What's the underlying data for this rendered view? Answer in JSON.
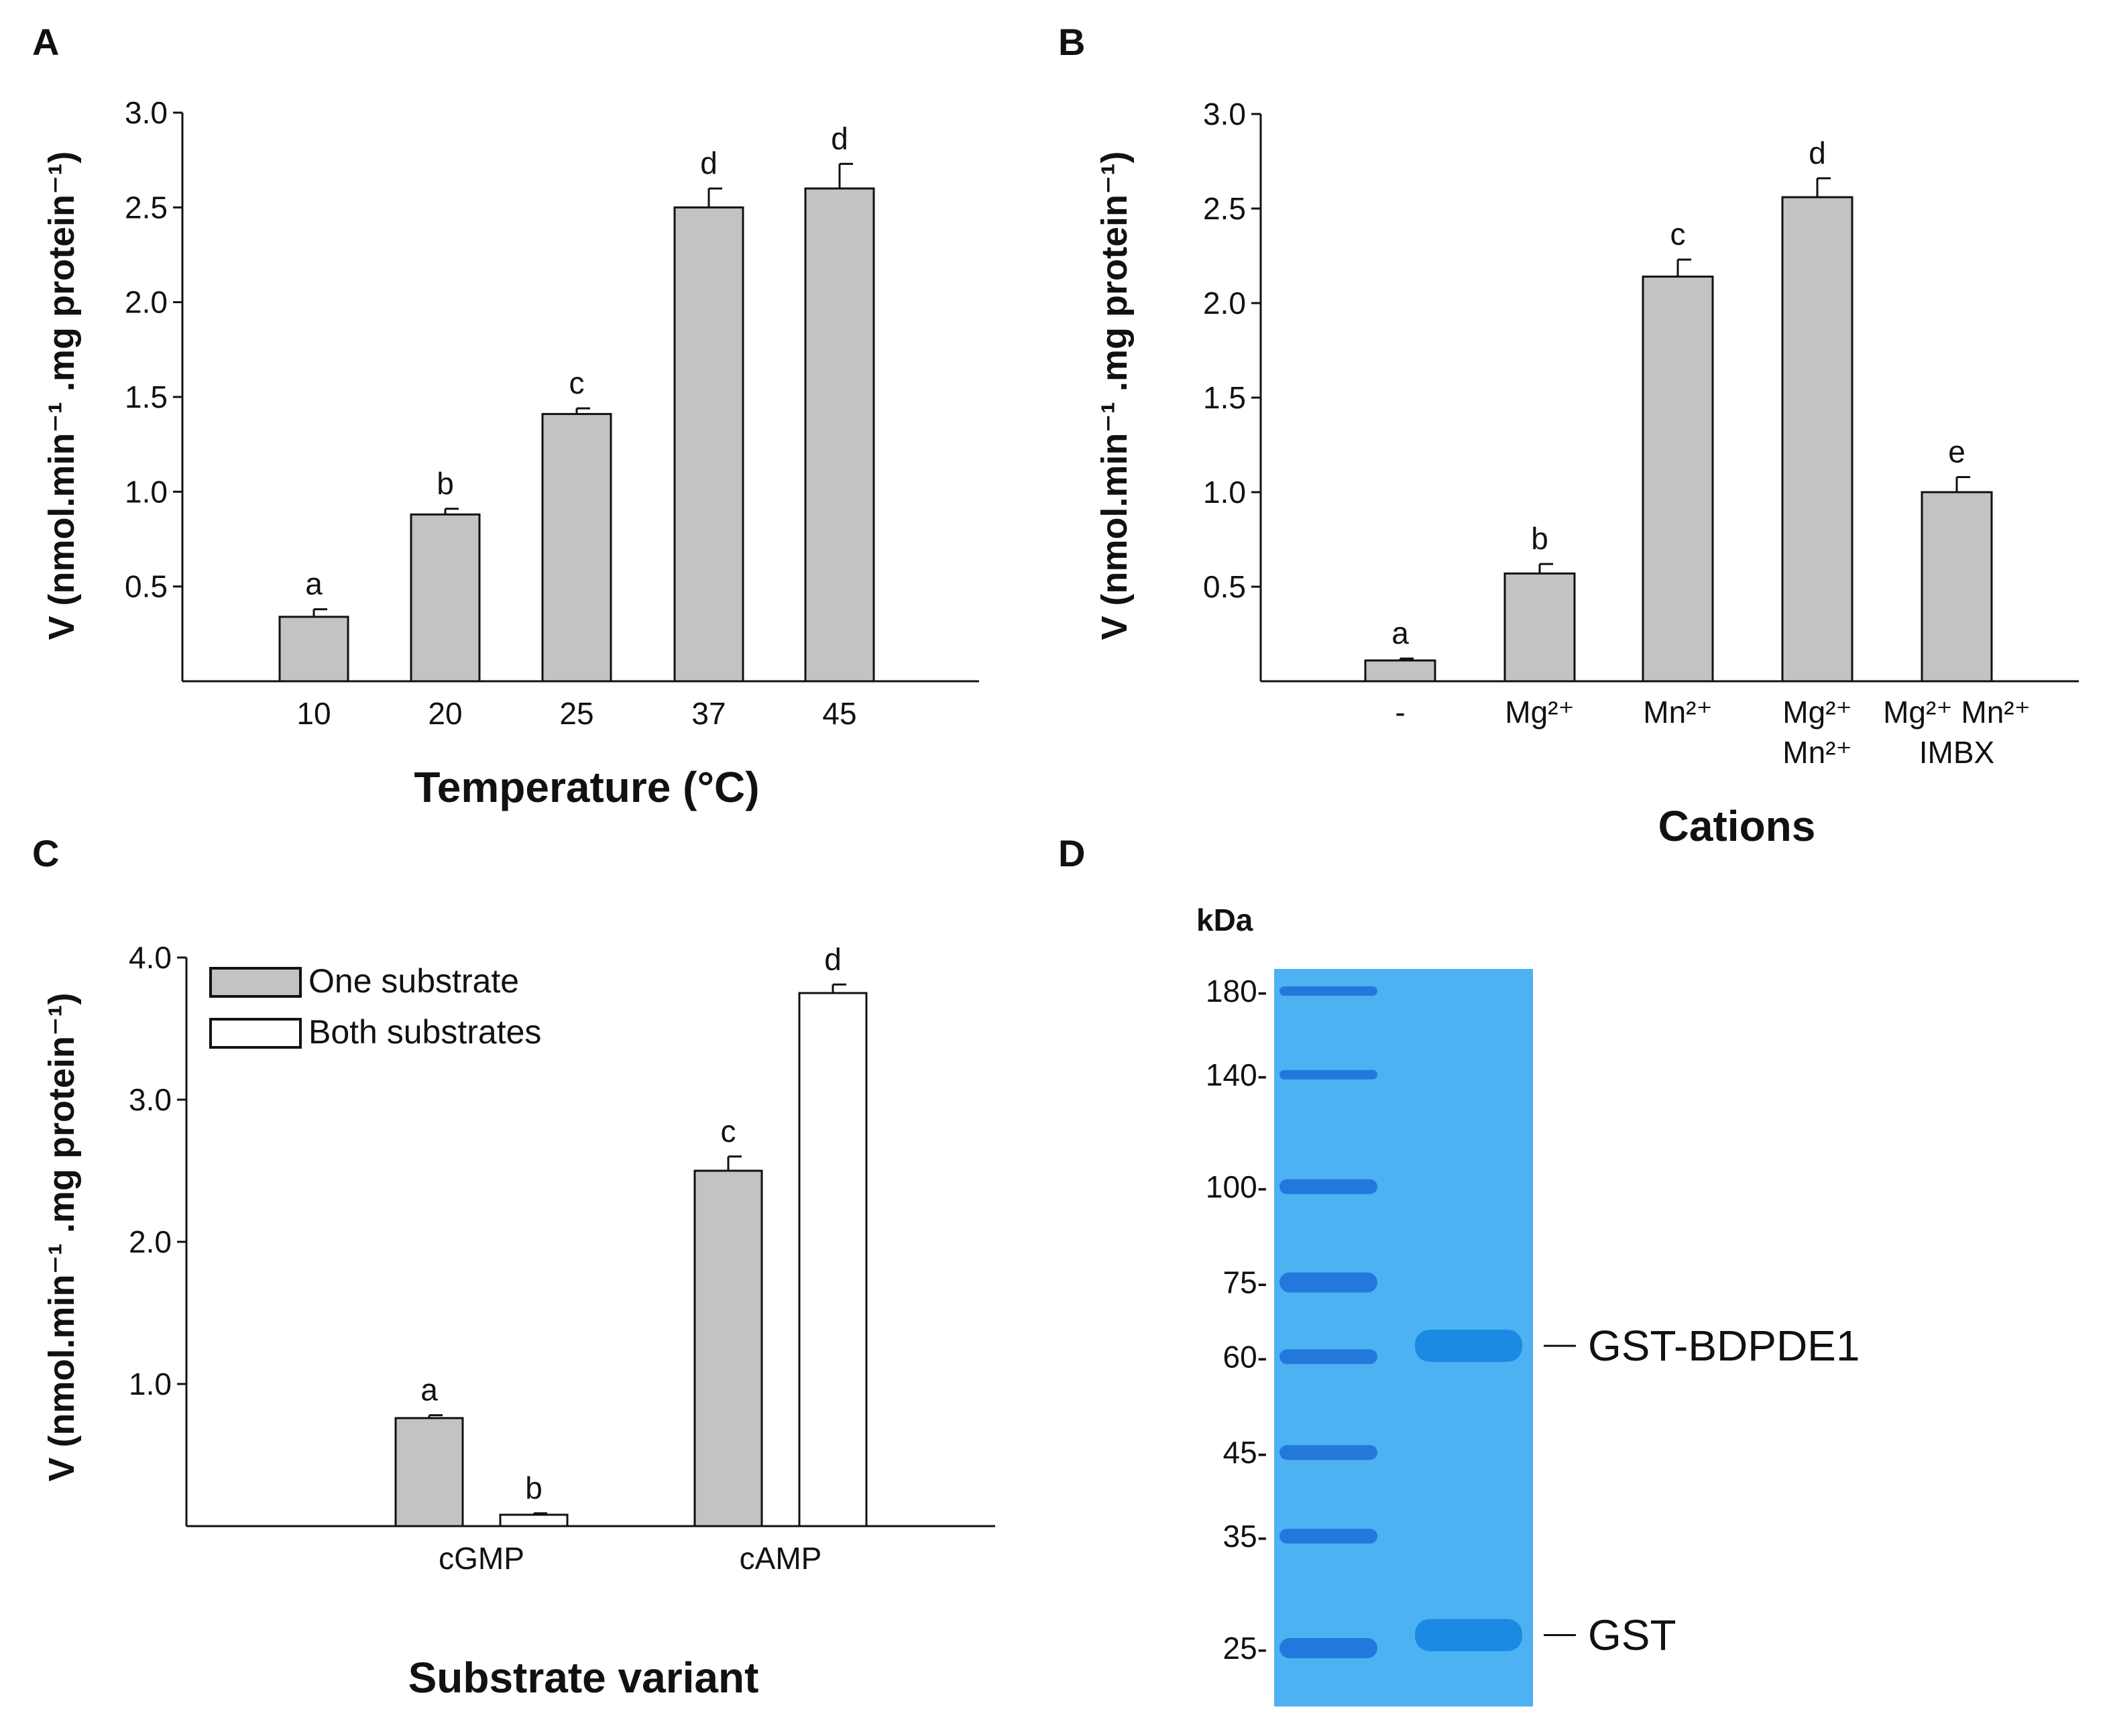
{
  "colors": {
    "bar_gray": "#c3c3c3",
    "bar_white": "#ffffff",
    "gel_blue": "#4cb2f1",
    "ladder_band": "#1f72d8",
    "protein_band": "#1a8ae3"
  },
  "chart_data": [
    {
      "panel": "A",
      "type": "bar",
      "title": "",
      "xlabel": "Temperature (°C)",
      "ylabel": "V (nmol.min⁻¹ .mg protein⁻¹)",
      "ylim": [
        0,
        3.0
      ],
      "yticks": [
        "0.5",
        "1.0",
        "1.5",
        "2.0",
        "2.5",
        "3.0"
      ],
      "categories": [
        "10",
        "20",
        "25",
        "37",
        "45"
      ],
      "values": [
        0.34,
        0.88,
        1.41,
        2.5,
        2.6
      ],
      "errors": [
        0.04,
        0.03,
        0.03,
        0.1,
        0.13
      ],
      "letters": [
        "a",
        "b",
        "c",
        "d",
        "d"
      ],
      "grid": false
    },
    {
      "panel": "B",
      "type": "bar",
      "title": "",
      "xlabel": "Cations",
      "ylabel": "V (nmol.min⁻¹ .mg protein⁻¹)",
      "ylim": [
        0,
        3.0
      ],
      "yticks": [
        "0.5",
        "1.0",
        "1.5",
        "2.0",
        "2.5",
        "3.0"
      ],
      "categories": [
        {
          "line1": "-",
          "line2": ""
        },
        {
          "line1": "Mg²⁺",
          "line2": ""
        },
        {
          "line1": "Mn²⁺",
          "line2": ""
        },
        {
          "line1": "Mg²⁺",
          "line2": "Mn²⁺"
        },
        {
          "line1": "Mg²⁺ Mn²⁺",
          "line2": "IMBX"
        }
      ],
      "values": [
        0.11,
        0.57,
        2.14,
        2.56,
        1.0
      ],
      "errors": [
        0.01,
        0.05,
        0.09,
        0.1,
        0.08
      ],
      "letters": [
        "a",
        "b",
        "c",
        "d",
        "e"
      ],
      "grid": false
    },
    {
      "panel": "C",
      "type": "bar",
      "title": "",
      "xlabel": "Substrate variant",
      "ylabel": "V (nmol.min⁻¹ .mg protein⁻¹)",
      "ylim": [
        0,
        4.0
      ],
      "yticks": [
        "1.0",
        "2.0",
        "3.0",
        "4.0"
      ],
      "categories": [
        "cGMP",
        "cAMP"
      ],
      "series": [
        {
          "name": "One substrate",
          "color": "#c3c3c3",
          "values": [
            0.76,
            2.5
          ],
          "errors": [
            0.02,
            0.1
          ],
          "letters": [
            "a",
            "c"
          ]
        },
        {
          "name": "Both substrates",
          "color": "#ffffff",
          "values": [
            0.08,
            3.75
          ],
          "errors": [
            0.01,
            0.06
          ],
          "letters": [
            "b",
            "d"
          ]
        }
      ],
      "legend": "top-left",
      "grid": false
    }
  ],
  "panels": {
    "A": "A",
    "B": "B",
    "C": "C",
    "D": "D"
  },
  "gel": {
    "unit": "kDa",
    "ladder": [
      {
        "label": "180-",
        "kda": 180
      },
      {
        "label": "140-",
        "kda": 140
      },
      {
        "label": "100-",
        "kda": 100
      },
      {
        "label": "75-",
        "kda": 75
      },
      {
        "label": "60-",
        "kda": 60
      },
      {
        "label": "45-",
        "kda": 45
      },
      {
        "label": "35-",
        "kda": 35
      },
      {
        "label": "25-",
        "kda": 25
      }
    ],
    "bands": [
      {
        "label": "GST-BDPDE1",
        "kda": 62
      },
      {
        "label": "GST",
        "kda": 26
      }
    ]
  }
}
